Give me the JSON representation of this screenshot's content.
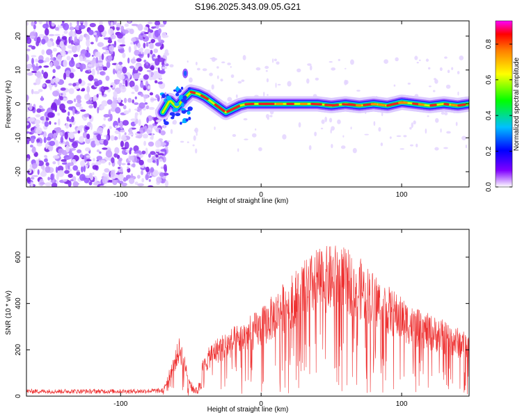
{
  "title": "S196.2025.343.09.05.G21",
  "chart_data": [
    {
      "type": "heatmap",
      "title": "S196.2025.343.09.05.G21",
      "xlabel": "Height of straight line (km)",
      "ylabel": "Frequency (Hz)",
      "xlim": [
        -167,
        148
      ],
      "ylim": [
        -24.5,
        24.5
      ],
      "xticks": [
        -100,
        0,
        100
      ],
      "xtick_labels": [
        "-100",
        "0",
        "100"
      ],
      "yticks": [
        -20,
        -10,
        0,
        10,
        20
      ],
      "ytick_labels": [
        "-20",
        "-10",
        "0",
        "10",
        "20"
      ],
      "colorbar": {
        "label": "Normalized spectral amplitude",
        "range": [
          0.0,
          0.93
        ],
        "ticks": [
          0.0,
          0.2,
          0.4,
          0.6,
          0.8
        ],
        "tick_labels": [
          "0.0",
          "0.2",
          "0.4",
          "0.6",
          "0.8"
        ]
      },
      "noise_region_x": [
        -167,
        -70
      ],
      "ridge": {
        "x": [
          -70,
          -65,
          -60,
          -55,
          -50,
          -45,
          -40,
          -35,
          -30,
          -25,
          -20,
          -15,
          -10,
          0,
          10,
          20,
          30,
          40,
          50,
          60,
          70,
          80,
          90,
          100,
          110,
          120,
          130,
          140,
          148
        ],
        "y": [
          -2.5,
          1.0,
          -1.0,
          1.5,
          3.5,
          3.0,
          2.0,
          0.5,
          -1.0,
          -2.5,
          -1.5,
          -0.5,
          0.0,
          0.0,
          0.0,
          0.0,
          0.0,
          0.0,
          -0.5,
          0.0,
          -0.5,
          0.0,
          -0.5,
          0.5,
          0.0,
          -0.5,
          0.0,
          -0.5,
          0.0
        ]
      }
    },
    {
      "type": "line",
      "xlabel": "Height of straight line (km)",
      "ylabel": "SNR (10 * v/v)",
      "xlim": [
        -167,
        148
      ],
      "ylim": [
        0,
        720
      ],
      "xticks": [
        -100,
        0,
        100
      ],
      "xtick_labels": [
        "-100",
        "0",
        "100"
      ],
      "yticks": [
        0,
        200,
        400,
        600
      ],
      "ytick_labels": [
        "0",
        "200",
        "400",
        "600"
      ],
      "color": "#ee3030",
      "envelope": {
        "x": [
          -167,
          -90,
          -70,
          -62,
          -58,
          -55,
          -50,
          -45,
          -42,
          -35,
          -20,
          0,
          20,
          40,
          55,
          70,
          90,
          110,
          130,
          148
        ],
        "y": [
          22,
          22,
          25,
          180,
          260,
          200,
          60,
          30,
          150,
          240,
          300,
          380,
          520,
          640,
          660,
          600,
          480,
          380,
          330,
          270
        ]
      }
    }
  ]
}
